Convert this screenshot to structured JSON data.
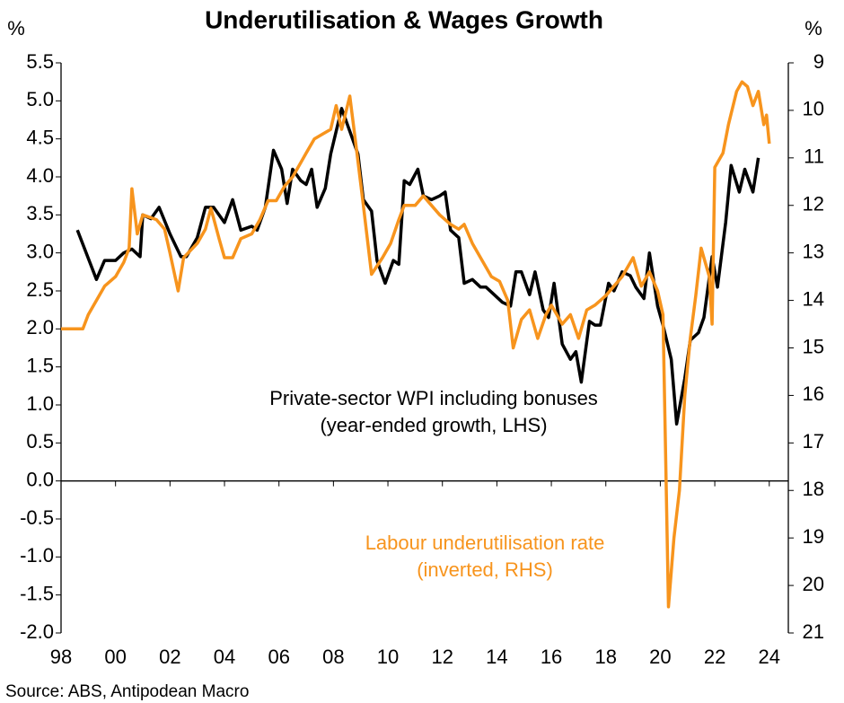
{
  "chart_data": {
    "type": "line",
    "title": "Underutilisation & Wages Growth",
    "y_unit": "%",
    "y2_unit": "%",
    "source": "Source: ABS, Antipodean Macro",
    "xlim": [
      1998,
      2024.7
    ],
    "xticks": [
      {
        "value": 1998,
        "label": "98"
      },
      {
        "value": 2000,
        "label": "00"
      },
      {
        "value": 2002,
        "label": "02"
      },
      {
        "value": 2004,
        "label": "04"
      },
      {
        "value": 2006,
        "label": "06"
      },
      {
        "value": 2008,
        "label": "08"
      },
      {
        "value": 2010,
        "label": "10"
      },
      {
        "value": 2012,
        "label": "12"
      },
      {
        "value": 2014,
        "label": "14"
      },
      {
        "value": 2016,
        "label": "16"
      },
      {
        "value": 2018,
        "label": "18"
      },
      {
        "value": 2020,
        "label": "20"
      },
      {
        "value": 2022,
        "label": "22"
      },
      {
        "value": 2024,
        "label": "24"
      }
    ],
    "ylim": [
      -2.0,
      5.5
    ],
    "yticks": [
      {
        "value": -2,
        "label": "-2.0"
      },
      {
        "value": -1.5,
        "label": "-1.5"
      },
      {
        "value": -1,
        "label": "-1.0"
      },
      {
        "value": -0.5,
        "label": "-0.5"
      },
      {
        "value": 0,
        "label": "0.0"
      },
      {
        "value": 0.5,
        "label": "0.5"
      },
      {
        "value": 1,
        "label": "1.0"
      },
      {
        "value": 1.5,
        "label": "1.5"
      },
      {
        "value": 2,
        "label": "2.0"
      },
      {
        "value": 2.5,
        "label": "2.5"
      },
      {
        "value": 3,
        "label": "3.0"
      },
      {
        "value": 3.5,
        "label": "3.5"
      },
      {
        "value": 4,
        "label": "4.0"
      },
      {
        "value": 4.5,
        "label": "4.5"
      },
      {
        "value": 5,
        "label": "5.0"
      },
      {
        "value": 5.5,
        "label": "5.5"
      }
    ],
    "y2lim": [
      21,
      9
    ],
    "y2ticks": [
      9,
      10,
      11,
      12,
      13,
      14,
      15,
      16,
      17,
      18,
      19,
      20,
      21
    ],
    "series": [
      {
        "label_lines": [
          "Private-sector WPI including bonuses",
          "(year-ended growth, LHS)"
        ],
        "color": "#000000",
        "axis": "y",
        "x": [
          1998.6,
          1999.3,
          1999.6,
          2000,
          2000.3,
          2000.6,
          2000.9,
          2001,
          2001.3,
          2001.6,
          2002,
          2002.2,
          2002.4,
          2002.6,
          2003,
          2003.3,
          2003.6,
          2004,
          2004.3,
          2004.6,
          2005,
          2005.2,
          2005.5,
          2005.8,
          2006.1,
          2006.3,
          2006.5,
          2006.8,
          2007,
          2007.2,
          2007.4,
          2007.7,
          2007.9,
          2008.3,
          2008.6,
          2008.9,
          2009.1,
          2009.4,
          2009.6,
          2009.9,
          2010.2,
          2010.4,
          2010.6,
          2010.8,
          2011.1,
          2011.3,
          2011.6,
          2011.9,
          2012.1,
          2012.3,
          2012.6,
          2012.8,
          2013.1,
          2013.4,
          2013.6,
          2013.9,
          2014.2,
          2014.5,
          2014.7,
          2014.9,
          2015.2,
          2015.4,
          2015.7,
          2015.9,
          2016.1,
          2016.4,
          2016.7,
          2016.9,
          2017.1,
          2017.4,
          2017.6,
          2017.8,
          2018.1,
          2018.3,
          2018.6,
          2018.9,
          2019.1,
          2019.4,
          2019.6,
          2019.9,
          2020.1,
          2020.4,
          2020.6,
          2020.9,
          2021.1,
          2021.4,
          2021.6,
          2021.9,
          2022.1,
          2022.4,
          2022.6,
          2022.9,
          2023.1,
          2023.4,
          2023.6
        ],
        "values": [
          3.3,
          2.65,
          2.9,
          2.9,
          3.0,
          3.05,
          2.95,
          3.5,
          3.45,
          3.6,
          3.25,
          3.1,
          2.95,
          2.95,
          3.2,
          3.6,
          3.6,
          3.4,
          3.7,
          3.3,
          3.35,
          3.3,
          3.6,
          4.35,
          4.1,
          3.65,
          4.1,
          3.95,
          3.9,
          4.1,
          3.6,
          3.85,
          4.3,
          4.9,
          4.6,
          4.3,
          3.7,
          3.55,
          2.9,
          2.6,
          2.9,
          2.85,
          3.95,
          3.9,
          4.1,
          3.75,
          3.7,
          3.75,
          3.8,
          3.3,
          3.2,
          2.6,
          2.65,
          2.55,
          2.55,
          2.45,
          2.35,
          2.3,
          2.75,
          2.75,
          2.45,
          2.75,
          2.25,
          2.15,
          2.6,
          1.8,
          1.6,
          1.7,
          1.3,
          2.1,
          2.05,
          2.05,
          2.6,
          2.5,
          2.75,
          2.7,
          2.55,
          2.4,
          3.0,
          2.3,
          2.05,
          1.6,
          0.75,
          1.35,
          1.85,
          1.95,
          2.15,
          2.95,
          2.55,
          3.4,
          4.15,
          3.8,
          4.1,
          3.8,
          4.25
        ]
      },
      {
        "label_lines": [
          "Labour underutilisation rate",
          "(inverted, RHS)"
        ],
        "color": "#f7941d",
        "axis": "y2",
        "x": [
          1998,
          1998.8,
          1999,
          1999.3,
          1999.6,
          2000,
          2000.3,
          2000.5,
          2000.6,
          2000.8,
          2001,
          2001.5,
          2001.8,
          2002,
          2002.3,
          2002.5,
          2003,
          2003.3,
          2003.5,
          2003.8,
          2004,
          2004.3,
          2004.6,
          2005,
          2005.3,
          2005.6,
          2005.9,
          2006.2,
          2006.5,
          2006.8,
          2007,
          2007.3,
          2007.6,
          2007.9,
          2008.1,
          2008.3,
          2008.6,
          2008.8,
          2009.1,
          2009.4,
          2009.8,
          2010.1,
          2010.4,
          2010.6,
          2011,
          2011.3,
          2011.6,
          2011.9,
          2012.3,
          2012.6,
          2012.8,
          2013.1,
          2013.5,
          2013.8,
          2014.1,
          2014.4,
          2014.6,
          2014.9,
          2015.2,
          2015.5,
          2015.8,
          2016,
          2016.4,
          2016.7,
          2017,
          2017.3,
          2017.6,
          2018,
          2018.3,
          2018.6,
          2019,
          2019.3,
          2019.6,
          2019.9,
          2020.1,
          2020.3,
          2020.5,
          2020.7,
          2020.9,
          2021.1,
          2021.3,
          2021.5,
          2021.8,
          2021.9,
          2022,
          2022.3,
          2022.5,
          2022.8,
          2023,
          2023.2,
          2023.4,
          2023.6,
          2023.8,
          2023.9,
          2024
        ],
        "values": [
          14.6,
          14.6,
          14.3,
          14.0,
          13.7,
          13.5,
          13.2,
          12.9,
          11.65,
          12.6,
          12.2,
          12.3,
          12.5,
          13.0,
          13.8,
          13.1,
          12.8,
          12.5,
          12.06,
          12.7,
          13.1,
          13.1,
          12.7,
          12.6,
          12.3,
          11.9,
          11.9,
          11.6,
          11.4,
          11.1,
          10.9,
          10.6,
          10.5,
          10.4,
          9.9,
          10.4,
          9.7,
          10.6,
          12.0,
          13.45,
          13.1,
          12.8,
          12.3,
          12.0,
          12.0,
          11.8,
          12.0,
          12.2,
          12.4,
          12.5,
          12.4,
          12.8,
          13.2,
          13.5,
          13.6,
          14.0,
          15.0,
          14.4,
          14.2,
          14.8,
          14.3,
          14.1,
          14.5,
          14.3,
          14.8,
          14.2,
          14.1,
          13.9,
          13.7,
          13.5,
          13.1,
          13.7,
          13.4,
          13.8,
          14.3,
          20.45,
          19.0,
          18.0,
          16.0,
          14.8,
          13.9,
          12.9,
          13.5,
          14.5,
          11.2,
          10.9,
          10.3,
          9.6,
          9.4,
          9.5,
          9.9,
          9.6,
          10.3,
          10.1,
          10.7
        ]
      }
    ]
  }
}
